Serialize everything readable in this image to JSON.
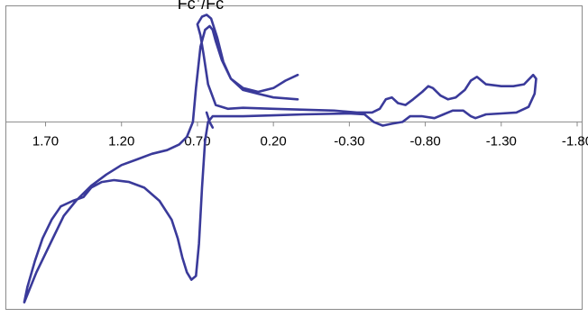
{
  "chart_data": {
    "type": "line",
    "title": "",
    "xlabel": "",
    "ylabel": "",
    "x_reversed": true,
    "xlim": [
      2.0,
      -1.8
    ],
    "x_ticks": [
      1.7,
      1.2,
      0.7,
      0.2,
      -0.3,
      -0.8,
      -1.3,
      -1.8
    ],
    "x_tick_labels": [
      "1.70",
      "1.20",
      "0.70",
      "0.20",
      "-0.30",
      "-0.80",
      "-1.30",
      "-1.80"
    ],
    "ylim": [
      -1.0,
      0.62
    ],
    "y_axis_visible": false,
    "grid": false,
    "legend": "none",
    "line_color": "#3a3a9a",
    "annotations": [
      {
        "text_base": "Fc",
        "text_sup": "+",
        "text_rest": "/Fc",
        "x": 0.62,
        "y": 0.6
      }
    ],
    "series": [
      {
        "points": [
          [
            0.04,
            0.25
          ],
          [
            0.12,
            0.22
          ],
          [
            0.2,
            0.18
          ],
          [
            0.3,
            0.16
          ],
          [
            0.4,
            0.18
          ],
          [
            0.48,
            0.23
          ],
          [
            0.54,
            0.33
          ],
          [
            0.58,
            0.43
          ],
          [
            0.6,
            0.49
          ],
          [
            0.62,
            0.51
          ],
          [
            0.65,
            0.49
          ],
          [
            0.68,
            0.4
          ],
          [
            0.71,
            0.18
          ],
          [
            0.73,
            0.0
          ],
          [
            0.77,
            -0.08
          ],
          [
            0.82,
            -0.12
          ],
          [
            0.9,
            -0.15
          ],
          [
            1.0,
            -0.17
          ],
          [
            1.1,
            -0.2
          ],
          [
            1.2,
            -0.23
          ],
          [
            1.3,
            -0.28
          ],
          [
            1.4,
            -0.34
          ],
          [
            1.5,
            -0.42
          ],
          [
            1.58,
            -0.5
          ],
          [
            1.64,
            -0.6
          ],
          [
            1.7,
            -0.7
          ],
          [
            1.76,
            -0.8
          ],
          [
            1.81,
            -0.9
          ],
          [
            1.84,
            -0.96
          ],
          [
            1.82,
            -0.88
          ],
          [
            1.77,
            -0.74
          ],
          [
            1.72,
            -0.62
          ],
          [
            1.66,
            -0.52
          ],
          [
            1.6,
            -0.45
          ],
          [
            1.52,
            -0.42
          ],
          [
            1.45,
            -0.4
          ],
          [
            1.4,
            -0.35
          ],
          [
            1.33,
            -0.32
          ],
          [
            1.25,
            -0.31
          ],
          [
            1.15,
            -0.32
          ],
          [
            1.05,
            -0.35
          ],
          [
            0.95,
            -0.42
          ],
          [
            0.87,
            -0.52
          ],
          [
            0.83,
            -0.62
          ],
          [
            0.8,
            -0.72
          ],
          [
            0.77,
            -0.8
          ],
          [
            0.74,
            -0.84
          ],
          [
            0.71,
            -0.82
          ],
          [
            0.69,
            -0.65
          ],
          [
            0.67,
            -0.35
          ],
          [
            0.65,
            -0.1
          ],
          [
            0.63,
            0.0
          ],
          [
            0.6,
            0.03
          ],
          [
            0.5,
            0.03
          ],
          [
            0.4,
            0.03
          ],
          [
            0.2,
            0.035
          ],
          [
            0.0,
            0.04
          ],
          [
            -0.3,
            0.045
          ],
          [
            -0.4,
            0.04
          ],
          [
            -0.46,
            0.0
          ],
          [
            -0.52,
            -0.02
          ],
          [
            -0.58,
            -0.01
          ],
          [
            -0.65,
            0.0
          ],
          [
            -0.7,
            0.03
          ],
          [
            -0.78,
            0.03
          ],
          [
            -0.86,
            0.02
          ],
          [
            -0.92,
            0.04
          ],
          [
            -0.98,
            0.06
          ],
          [
            -1.05,
            0.06
          ],
          [
            -1.1,
            0.03
          ],
          [
            -1.13,
            0.02
          ],
          [
            -1.2,
            0.04
          ],
          [
            -1.3,
            0.045
          ],
          [
            -1.4,
            0.05
          ],
          [
            -1.48,
            0.08
          ],
          [
            -1.52,
            0.15
          ],
          [
            -1.53,
            0.23
          ],
          [
            -1.51,
            0.25
          ],
          [
            -1.45,
            0.2
          ],
          [
            -1.38,
            0.19
          ],
          [
            -1.3,
            0.19
          ],
          [
            -1.2,
            0.2
          ],
          [
            -1.14,
            0.24
          ],
          [
            -1.1,
            0.22
          ],
          [
            -1.06,
            0.17
          ],
          [
            -1.0,
            0.13
          ],
          [
            -0.95,
            0.12
          ],
          [
            -0.9,
            0.14
          ],
          [
            -0.85,
            0.18
          ],
          [
            -0.82,
            0.19
          ],
          [
            -0.78,
            0.16
          ],
          [
            -0.72,
            0.12
          ],
          [
            -0.67,
            0.09
          ],
          [
            -0.62,
            0.1
          ],
          [
            -0.58,
            0.13
          ],
          [
            -0.54,
            0.12
          ],
          [
            -0.5,
            0.07
          ],
          [
            -0.45,
            0.05
          ],
          [
            -0.35,
            0.05
          ],
          [
            -0.2,
            0.06
          ],
          [
            0.0,
            0.065
          ],
          [
            0.2,
            0.07
          ],
          [
            0.4,
            0.075
          ],
          [
            0.5,
            0.07
          ],
          [
            0.58,
            0.09
          ],
          [
            0.63,
            0.2
          ],
          [
            0.66,
            0.36
          ],
          [
            0.68,
            0.46
          ],
          [
            0.7,
            0.52
          ],
          [
            0.67,
            0.56
          ],
          [
            0.64,
            0.57
          ],
          [
            0.61,
            0.55
          ],
          [
            0.57,
            0.45
          ],
          [
            0.53,
            0.32
          ],
          [
            0.48,
            0.23
          ],
          [
            0.4,
            0.17
          ],
          [
            0.3,
            0.15
          ],
          [
            0.2,
            0.13
          ],
          [
            0.04,
            0.12
          ]
        ]
      },
      {
        "points": [
          [
            0.6,
            -0.03
          ],
          [
            0.62,
            0.0
          ],
          [
            0.64,
            0.05
          ]
        ]
      }
    ]
  }
}
